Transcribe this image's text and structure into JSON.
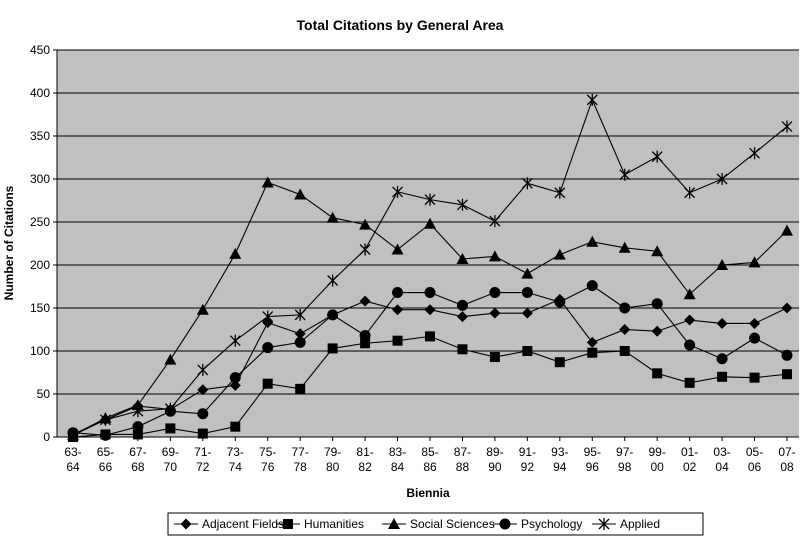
{
  "chart_data": {
    "type": "line",
    "title": "Total Citations by General Area",
    "xlabel": "Biennia",
    "ylabel": "Number of Citations",
    "ylim": [
      0,
      450
    ],
    "yticks": [
      0,
      50,
      100,
      150,
      200,
      250,
      300,
      350,
      400,
      450
    ],
    "grid": "horizontal",
    "legend_position": "bottom",
    "categories": [
      [
        "63-",
        "64"
      ],
      [
        "65-",
        "66"
      ],
      [
        "67-",
        "68"
      ],
      [
        "69-",
        "70"
      ],
      [
        "71-",
        "72"
      ],
      [
        "73-",
        "74"
      ],
      [
        "75-",
        "76"
      ],
      [
        "77-",
        "78"
      ],
      [
        "79-",
        "80"
      ],
      [
        "81-",
        "82"
      ],
      [
        "83-",
        "84"
      ],
      [
        "85-",
        "86"
      ],
      [
        "87-",
        "88"
      ],
      [
        "89-",
        "90"
      ],
      [
        "91-",
        "92"
      ],
      [
        "93-",
        "94"
      ],
      [
        "95-",
        "96"
      ],
      [
        "97-",
        "98"
      ],
      [
        "99-",
        "00"
      ],
      [
        "01-",
        "02"
      ],
      [
        "03-",
        "04"
      ],
      [
        "05-",
        "06"
      ],
      [
        "07-",
        "08"
      ]
    ],
    "series": [
      {
        "name": "Adjacent Fields",
        "marker": "diamond",
        "values": [
          3,
          20,
          36,
          32,
          55,
          60,
          133,
          120,
          142,
          158,
          148,
          148,
          140,
          144,
          144,
          160,
          110,
          125,
          123,
          136,
          132,
          132,
          150
        ]
      },
      {
        "name": "Humanities",
        "marker": "square",
        "values": [
          0,
          3,
          3,
          10,
          4,
          12,
          62,
          56,
          103,
          109,
          112,
          117,
          102,
          93,
          100,
          87,
          98,
          100,
          74,
          63,
          70,
          69,
          73
        ]
      },
      {
        "name": "Social Sciences",
        "marker": "triangle",
        "values": [
          2,
          22,
          37,
          90,
          148,
          213,
          296,
          282,
          255,
          247,
          218,
          248,
          207,
          210,
          190,
          212,
          227,
          220,
          216,
          166,
          200,
          203,
          240
        ]
      },
      {
        "name": "Psychology",
        "marker": "circle",
        "values": [
          5,
          2,
          12,
          30,
          27,
          69,
          104,
          110,
          142,
          118,
          168,
          168,
          153,
          168,
          168,
          157,
          176,
          150,
          155,
          107,
          91,
          115,
          95
        ]
      },
      {
        "name": "Applied",
        "marker": "star",
        "values": [
          2,
          20,
          30,
          33,
          78,
          112,
          140,
          142,
          182,
          218,
          285,
          276,
          270,
          251,
          295,
          284,
          392,
          305,
          326,
          284,
          300,
          330,
          361
        ]
      }
    ]
  }
}
